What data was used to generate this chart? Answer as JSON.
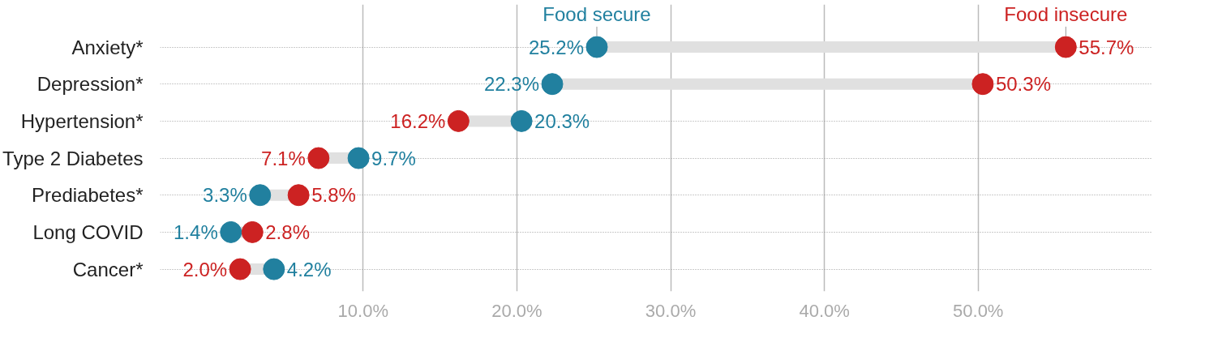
{
  "chart_data": {
    "type": "scatter",
    "orientation": "horizontal",
    "categories": [
      "Anxiety*",
      "Depression*",
      "Hypertension*",
      "Type 2 Diabetes",
      "Prediabetes*",
      "Long COVID",
      "Cancer*"
    ],
    "series": [
      {
        "name": "Food secure",
        "color": "#21809f",
        "values": [
          25.2,
          22.3,
          20.3,
          9.7,
          3.3,
          1.4,
          4.2
        ],
        "value_labels": [
          "25.2%",
          "22.3%",
          "20.3%",
          "9.7%",
          "3.3%",
          "1.4%",
          "4.2%"
        ]
      },
      {
        "name": "Food insecure",
        "color": "#cc2222",
        "values": [
          55.7,
          50.3,
          16.2,
          7.1,
          5.8,
          2.8,
          2.0
        ],
        "value_labels": [
          "55.7%",
          "50.3%",
          "16.2%",
          "7.1%",
          "5.8%",
          "2.8%",
          "2.0%"
        ]
      }
    ],
    "xlim": [
      -3.2,
      61.3
    ],
    "xticks": [
      {
        "value": 10,
        "label": "10.0%"
      },
      {
        "value": 20,
        "label": "20.0%"
      },
      {
        "value": 30,
        "label": "30.0%"
      },
      {
        "value": 40,
        "label": "40.0%"
      },
      {
        "value": 50,
        "label": "50.0%"
      }
    ],
    "grid": true,
    "legend": false,
    "marker": "circle"
  }
}
